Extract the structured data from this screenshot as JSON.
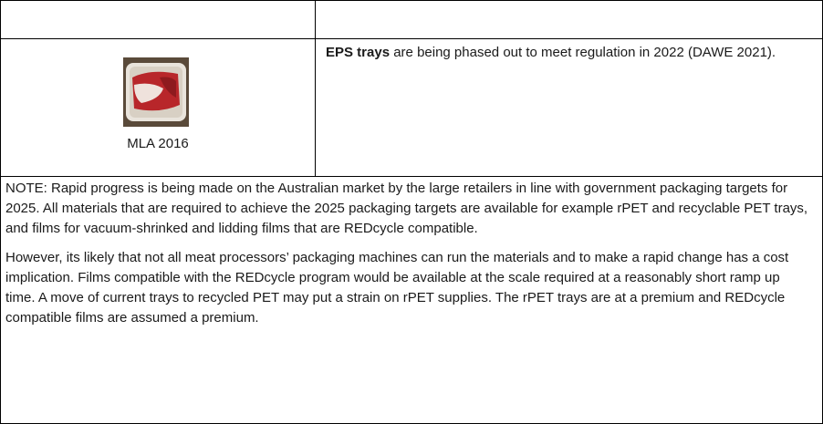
{
  "image_cell": {
    "credit": "MLA 2016"
  },
  "description_cell": {
    "bold": "EPS trays",
    "text": "are being phased out to meet regulation in 2022 (DAWE 2021)."
  },
  "note_cell": {
    "paragraphs": [
      "NOTE: Rapid progress is being made on the Australian market by the large retailers in line with government packaging targets for 2025. All materials that are required to achieve the 2025 packaging targets are available for example rPET and recyclable PET trays, and films for vacuum-shrinked and lidding films that are REDcycle compatible.",
      "However, its likely that not all meat processors’ packaging machines can run the materials and to make a rapid change has a cost implication. Films compatible with the REDcycle program would be available at the scale required at a reasonably short ramp up time. A move of current trays to recycled PET may put a strain on rPET supplies. The rPET trays are at a premium and REDcycle compatible films are assumed a premium."
    ]
  }
}
